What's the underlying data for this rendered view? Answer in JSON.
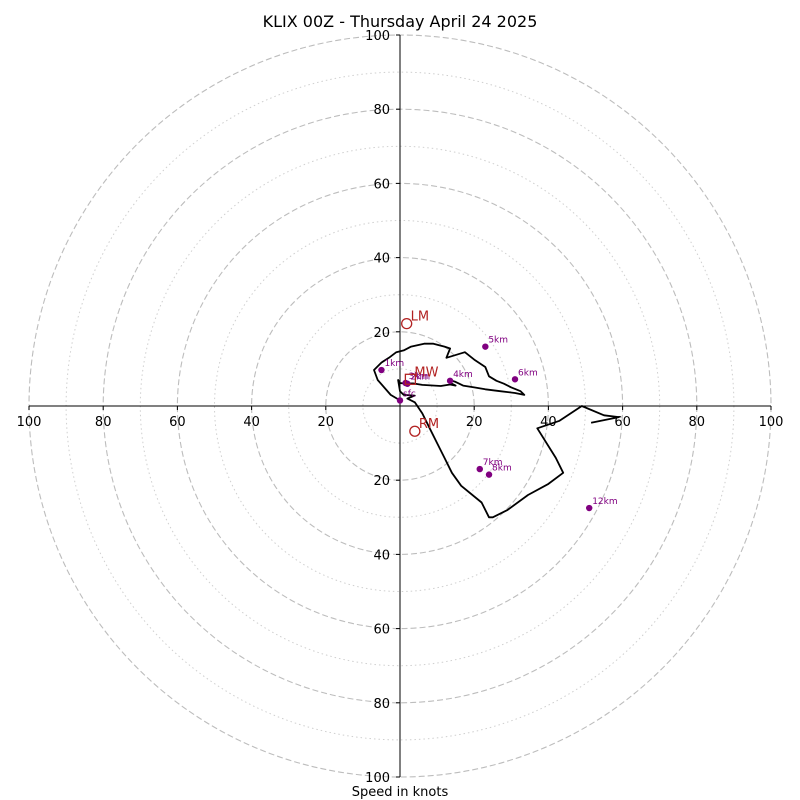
{
  "chart_data": {
    "type": "scatter",
    "title": "KLIX 00Z - Thursday April 24 2025",
    "xlabel": "Speed in knots",
    "ylabel": "",
    "xlim": [
      -100,
      100
    ],
    "ylim": [
      -100,
      100
    ],
    "major_rings": [
      20,
      40,
      60,
      80,
      100
    ],
    "minor_rings": [
      10,
      30,
      50,
      70,
      90
    ],
    "x_tick_labels": [
      "100",
      "80",
      "60",
      "40",
      "20",
      "20",
      "40",
      "60",
      "80",
      "100"
    ],
    "y_tick_labels": [
      "100",
      "80",
      "60",
      "40",
      "20",
      "20",
      "40",
      "60",
      "80",
      "100"
    ],
    "grid": true,
    "colors": {
      "hodograph": "#000000",
      "height_markers": "#800080",
      "storm_motion": "#b22222",
      "grid": "#bdbdbd"
    },
    "hodograph": {
      "u": [
        0.0,
        -2.5,
        -6.0,
        -7.0,
        -5.0,
        -3.0,
        -1.0,
        1.0,
        3.0,
        6.5,
        9.0,
        12.0,
        13.5,
        12.5,
        17.5,
        20.0,
        23.0,
        24.0,
        26.0,
        28.0,
        30.0,
        32.5,
        33.5,
        31.0,
        27.0,
        23.0,
        20.0,
        17.0,
        15.0,
        14.0,
        13.0,
        15.0,
        13.5,
        11.0,
        6.0,
        3.5,
        1.5,
        0.0,
        -0.5,
        0.0,
        1.0,
        4.0,
        2.0,
        4.0,
        6.0,
        8.0,
        10.0,
        12.0,
        14.0,
        16.5,
        22.0,
        24.0,
        25.0,
        29.0,
        34.5,
        40.0,
        44.0,
        42.0,
        37.0,
        43.0,
        49.0,
        55.0,
        59.0,
        51.5
      ],
      "v": [
        1.5,
        3.0,
        7.0,
        9.7,
        11.7,
        13.0,
        14.5,
        15.0,
        16.0,
        16.8,
        16.8,
        16.0,
        15.5,
        13.0,
        14.5,
        12.5,
        10.5,
        8.0,
        6.8,
        6.0,
        5.0,
        4.0,
        3.0,
        3.5,
        4.0,
        4.5,
        5.0,
        5.5,
        6.5,
        6.8,
        6.5,
        5.5,
        5.8,
        5.4,
        5.7,
        6.1,
        6.0,
        6.2,
        7.0,
        4.0,
        3.0,
        2.8,
        2.0,
        1.0,
        -2.0,
        -6.0,
        -10.0,
        -14.0,
        -18.0,
        -21.5,
        -26.0,
        -30.0,
        -30.0,
        -28.0,
        -24.0,
        -21.0,
        -18.0,
        -14.0,
        -6.0,
        -4.0,
        0.0,
        -2.5,
        -3.0,
        -4.5
      ]
    },
    "height_markers": [
      {
        "label": "sfc",
        "u": 0.0,
        "v": 1.5
      },
      {
        "label": "1km",
        "u": -5.0,
        "v": 9.7
      },
      {
        "label": "2km",
        "u": 2.0,
        "v": 6.0
      },
      {
        "label": "3km",
        "u": 1.5,
        "v": 6.2
      },
      {
        "label": "4km",
        "u": 13.5,
        "v": 6.8
      },
      {
        "label": "5km",
        "u": 23.0,
        "v": 16.0
      },
      {
        "label": "6km",
        "u": 31.0,
        "v": 7.2
      },
      {
        "label": "7km",
        "u": 21.5,
        "v": -17.0
      },
      {
        "label": "8km",
        "u": 24.0,
        "v": -18.5
      },
      {
        "label": "12km",
        "u": 51.0,
        "v": -27.5
      }
    ],
    "storm_motion": [
      {
        "label": "LM",
        "u": 1.8,
        "v": 22.2,
        "shape": "circle"
      },
      {
        "label": "MW",
        "u": 2.8,
        "v": 7.2,
        "shape": "square"
      },
      {
        "label": "RM",
        "u": 4.0,
        "v": -6.8,
        "shape": "circle"
      }
    ]
  }
}
